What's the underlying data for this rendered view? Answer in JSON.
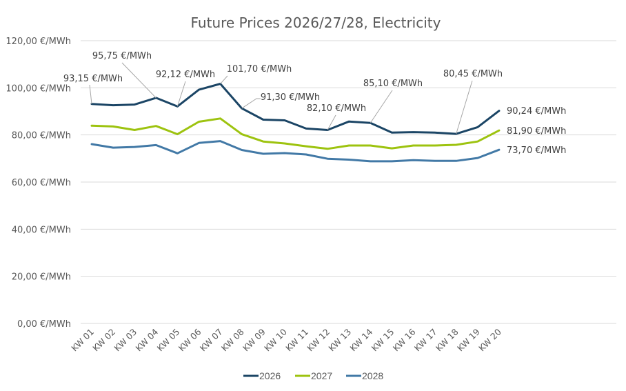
{
  "chart_data": {
    "type": "line",
    "title": "Future Prices 2026/27/28, Electricity",
    "xlabel": "",
    "ylabel": "",
    "ylim": [
      0,
      120
    ],
    "yticks": [
      0,
      20,
      40,
      60,
      80,
      100,
      120
    ],
    "ytick_labels": [
      "0,00 €/MWh",
      "20,00 €/MWh",
      "40,00 €/MWh",
      "60,00 €/MWh",
      "80,00 €/MWh",
      "100,00 €/MWh",
      "120,00 €/MWh"
    ],
    "grid": true,
    "legend_position": "bottom",
    "categories": [
      "KW 01",
      "KW 02",
      "KW 03",
      "KW 04",
      "KW 05",
      "KW 06",
      "KW 07",
      "KW 08",
      "KW 09",
      "KW 10",
      "KW 11",
      "KW 12",
      "KW 13",
      "KW 14",
      "KW 15",
      "KW 16",
      "KW 17",
      "KW 18",
      "KW 19",
      "KW 20"
    ],
    "series": [
      {
        "name": "2026",
        "color": "#1b4565",
        "values": [
          93.15,
          92.6,
          92.9,
          95.75,
          92.12,
          99.2,
          101.7,
          91.3,
          86.5,
          86.2,
          82.7,
          82.1,
          85.7,
          85.1,
          81.0,
          81.2,
          81.0,
          80.45,
          83.3,
          90.24
        ]
      },
      {
        "name": "2027",
        "color": "#9dc30f",
        "values": [
          83.9,
          83.6,
          82.1,
          83.8,
          80.3,
          85.6,
          87.0,
          80.3,
          77.2,
          76.4,
          75.2,
          74.1,
          75.5,
          75.5,
          74.3,
          75.5,
          75.5,
          75.8,
          77.2,
          81.9
        ]
      },
      {
        "name": "2028",
        "color": "#4279a6",
        "values": [
          76.1,
          74.6,
          74.9,
          75.7,
          72.2,
          76.6,
          77.4,
          73.6,
          72.0,
          72.3,
          71.7,
          69.9,
          69.5,
          68.8,
          68.8,
          69.3,
          69.0,
          69.0,
          70.2,
          73.7
        ]
      }
    ],
    "annotations": [
      {
        "series": "2026",
        "index": 0,
        "text": "93,15 €/MWh"
      },
      {
        "series": "2026",
        "index": 3,
        "text": "95,75 €/MWh"
      },
      {
        "series": "2026",
        "index": 4,
        "text": "92,12 €/MWh"
      },
      {
        "series": "2026",
        "index": 6,
        "text": "101,70 €/MWh"
      },
      {
        "series": "2026",
        "index": 7,
        "text": "91,30 €/MWh"
      },
      {
        "series": "2026",
        "index": 11,
        "text": "82,10 €/MWh"
      },
      {
        "series": "2026",
        "index": 13,
        "text": "85,10 €/MWh"
      },
      {
        "series": "2026",
        "index": 17,
        "text": "80,45 €/MWh"
      },
      {
        "series": "2026",
        "index": 19,
        "text": "90,24 €/MWh"
      },
      {
        "series": "2027",
        "index": 19,
        "text": "81,90 €/MWh"
      },
      {
        "series": "2028",
        "index": 19,
        "text": "73,70 €/MWh"
      }
    ]
  }
}
